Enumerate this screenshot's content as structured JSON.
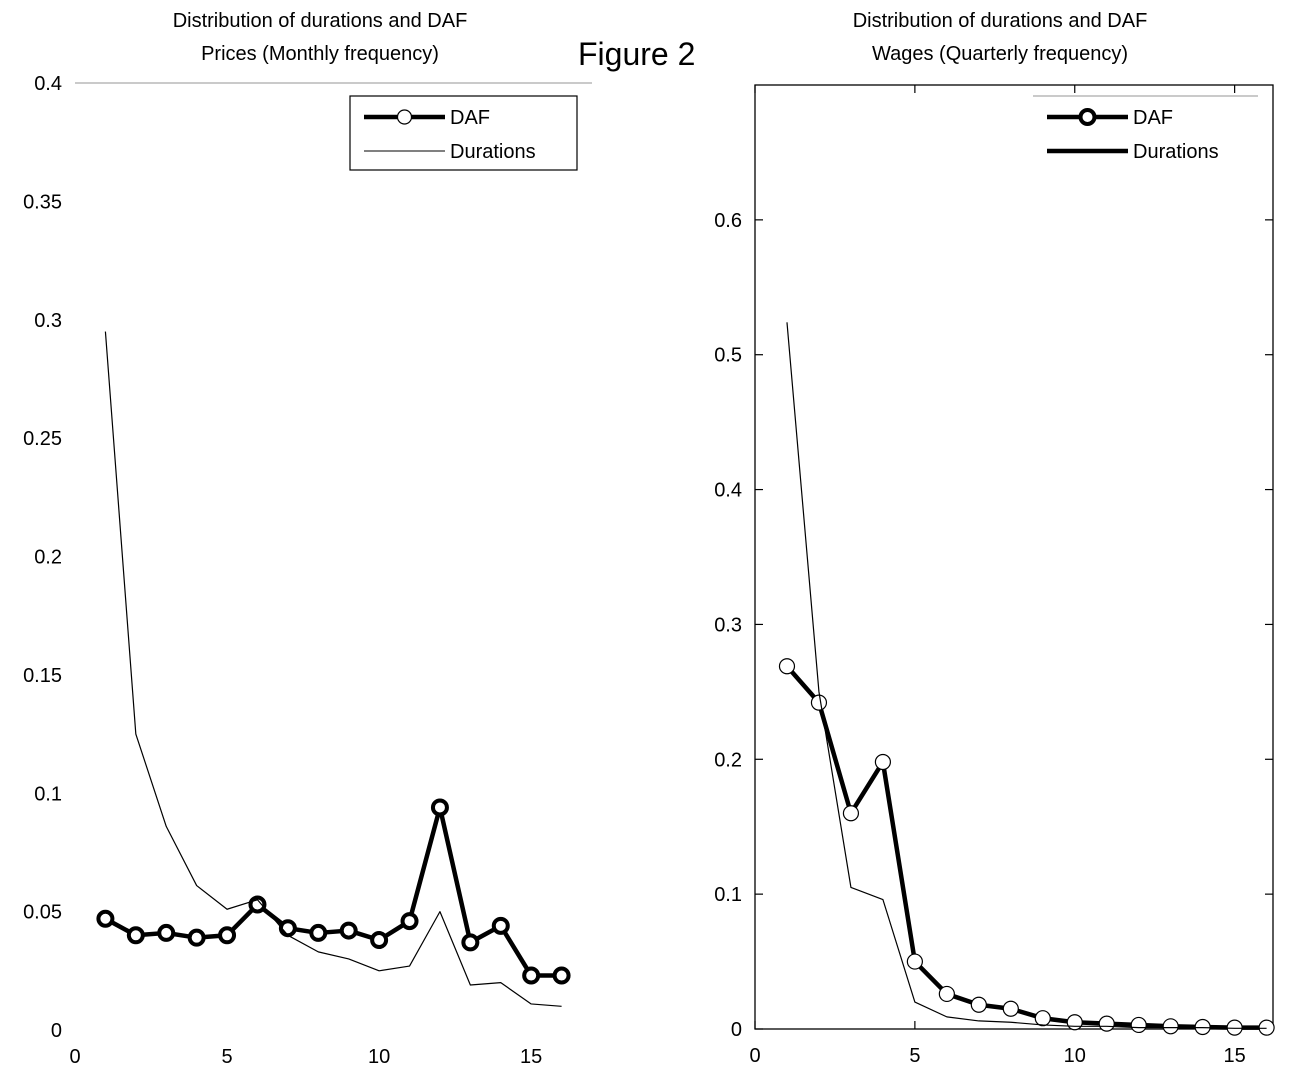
{
  "figure_title": "Figure 2",
  "chart_data": [
    {
      "type": "line",
      "title": "Distribution of durations and DAF",
      "subtitle": "Prices (Monthly frequency)",
      "xlabel": "",
      "ylabel": "",
      "xlim": [
        0,
        17
      ],
      "ylim": [
        0,
        0.4
      ],
      "xticks": [
        0,
        5,
        10,
        15
      ],
      "yticks": [
        0,
        0.05,
        0.1,
        0.15,
        0.2,
        0.25,
        0.3,
        0.35,
        0.4
      ],
      "ytick_labels": [
        "0",
        "0.05",
        "0.1",
        "0.15",
        "0.2",
        "0.25",
        "0.3",
        "0.35",
        "0.4"
      ],
      "xtick_labels": [
        "0",
        "5",
        "10",
        "15"
      ],
      "legend_position": "top-right",
      "x": [
        1,
        2,
        3,
        4,
        5,
        6,
        7,
        8,
        9,
        10,
        11,
        12,
        13,
        14,
        15,
        16
      ],
      "series": [
        {
          "name": "DAF",
          "style": "thick-with-circle-markers",
          "values": [
            0.047,
            0.04,
            0.041,
            0.039,
            0.04,
            0.053,
            0.043,
            0.041,
            0.042,
            0.038,
            0.046,
            0.094,
            0.037,
            0.044,
            0.023,
            0.023
          ]
        },
        {
          "name": "Durations",
          "style": "thin-line",
          "values": [
            0.295,
            0.125,
            0.086,
            0.061,
            0.051,
            0.055,
            0.04,
            0.033,
            0.03,
            0.025,
            0.027,
            0.05,
            0.019,
            0.02,
            0.011,
            0.01
          ]
        }
      ]
    },
    {
      "type": "line",
      "title": "Distribution of durations and DAF",
      "subtitle": "Wages (Quarterly frequency)",
      "xlabel": "",
      "ylabel": "",
      "xlim": [
        0,
        16.2
      ],
      "ylim": [
        0,
        0.7
      ],
      "xticks": [
        0,
        5,
        10,
        15
      ],
      "yticks": [
        0,
        0.1,
        0.2,
        0.3,
        0.4,
        0.5,
        0.6
      ],
      "ytick_labels": [
        "0",
        "0.1",
        "0.2",
        "0.3",
        "0.4",
        "0.5",
        "0.6"
      ],
      "xtick_labels": [
        "0",
        "5",
        "10",
        "15"
      ],
      "legend_position": "top-right",
      "x": [
        1,
        2,
        3,
        4,
        5,
        6,
        7,
        8,
        9,
        10,
        11,
        12,
        13,
        14,
        15,
        16
      ],
      "series": [
        {
          "name": "DAF",
          "style": "thick-with-circle-markers",
          "values": [
            0.269,
            0.242,
            0.16,
            0.198,
            0.05,
            0.026,
            0.018,
            0.015,
            0.008,
            0.005,
            0.004,
            0.003,
            0.002,
            0.0015,
            0.001,
            0.001
          ]
        },
        {
          "name": "Durations",
          "style": "thin-line",
          "values": [
            0.524,
            0.25,
            0.105,
            0.096,
            0.02,
            0.009,
            0.006,
            0.005,
            0.003,
            0.002,
            0.002,
            0.001,
            0.001,
            0.001,
            0.0005,
            0.0005
          ]
        }
      ]
    }
  ]
}
